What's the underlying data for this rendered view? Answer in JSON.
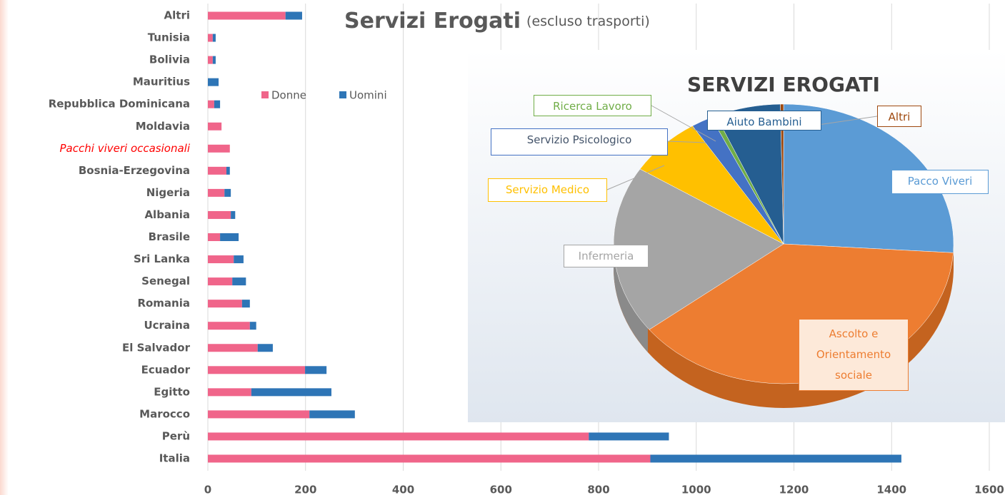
{
  "chart_data": [
    {
      "type": "hbar_stacked",
      "title": "Servizi Erogati",
      "subtitle": "(escluso trasporti)",
      "categories": [
        "Altri",
        "Tunisia",
        "Bolivia",
        "Mauritius",
        "Repubblica Dominicana",
        "Moldavia",
        "Pacchi viveri occasionali",
        "Bosnia-Erzegovina",
        "Nigeria",
        "Albania",
        "Brasile",
        "Sri Lanka",
        "Senegal",
        "Romania",
        "Ucraina",
        "El Salvador",
        "Ecuador",
        "Egitto",
        "Marocco",
        "Perù",
        "Italia"
      ],
      "series": [
        {
          "name": "Donne",
          "color": "#f0658a",
          "values": [
            159,
            10,
            10,
            0,
            13,
            28,
            45,
            38,
            34,
            47,
            25,
            53,
            50,
            70,
            86,
            102,
            199,
            89,
            208,
            780,
            906
          ]
        },
        {
          "name": "Uomini",
          "color": "#2e75b6",
          "values": [
            34,
            6,
            6,
            22,
            12,
            0,
            0,
            7,
            13,
            9,
            38,
            20,
            28,
            16,
            13,
            31,
            44,
            164,
            93,
            164,
            514
          ]
        }
      ],
      "xlim": [
        0,
        1600
      ],
      "xticks": [
        0,
        200,
        400,
        600,
        800,
        1000,
        1200,
        1400,
        1600
      ],
      "grid": true,
      "legend": "top",
      "highlight_category": 6,
      "highlight_color": "#ff0000"
    },
    {
      "type": "pie",
      "title": "SERVIZI EROGATI",
      "categories": [
        "Pacco Viveri",
        "Ascolto e Orientamento sociale",
        "Infermeria",
        "Servizio Medico",
        "Servizio Psicologico",
        "Ricerca Lavoro",
        "Aiuto Bambini",
        "Altri"
      ],
      "values": [
        26,
        38.5,
        19.5,
        7,
        2,
        0.5,
        6.2,
        0.3
      ],
      "colors": [
        "#5b9bd5",
        "#ed7d31",
        "#a5a5a5",
        "#ffc000",
        "#4472c4",
        "#70ad47",
        "#255e91",
        "#9e480e"
      ]
    }
  ]
}
